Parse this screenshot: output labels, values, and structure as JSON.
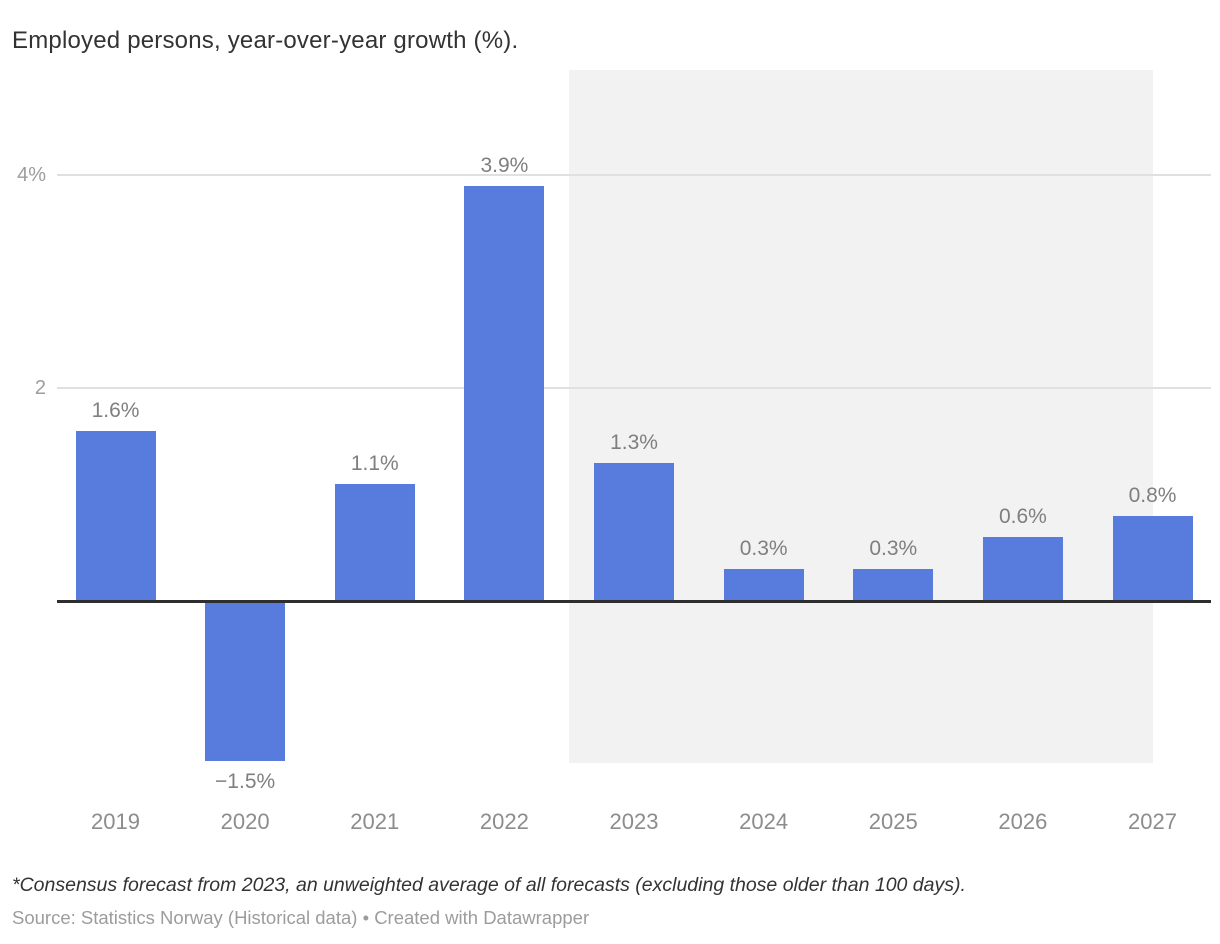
{
  "header": {
    "title": "Employed persons, year-over-year growth (%)."
  },
  "footer": {
    "footnote": "*Consensus forecast from 2023, an unweighted average of all forecasts (excluding those older than 100 days).",
    "source": "Source: Statistics Norway (Historical data) • Created with Datawrapper"
  },
  "colors": {
    "bar": "#587CDE",
    "grid_line": "#e0e0e0",
    "zero_line": "#2e2e2e",
    "forecast_band": "#f2f2f2",
    "value_label": "#7f7f7f",
    "year_label": "#8c8c8c",
    "y_tick_label": "#9c9c9c",
    "title_text": "#333333",
    "source_text": "#9c9c9c"
  },
  "chart_data": {
    "type": "bar",
    "title": "Employed persons, year-over-year growth (%).",
    "categories": [
      "2019",
      "2020",
      "2021",
      "2022",
      "2023",
      "2024",
      "2025",
      "2026",
      "2027"
    ],
    "values": [
      1.6,
      -1.5,
      1.1,
      3.9,
      1.3,
      0.3,
      0.3,
      0.6,
      0.8
    ],
    "value_labels": [
      "1.6%",
      "−1.5%",
      "1.1%",
      "3.9%",
      "1.3%",
      "0.3%",
      "0.3%",
      "0.6%",
      "0.8%"
    ],
    "xlabel": "",
    "ylabel": "",
    "y_ticks": [
      {
        "value": 4,
        "label": "4%"
      },
      {
        "value": 2,
        "label": "2"
      }
    ],
    "ylim": [
      -1.55,
      5.0
    ],
    "grid": "horizontal",
    "legend": "none",
    "forecast_band_from_category": "2023",
    "forecast_band_to_category": "2027"
  }
}
